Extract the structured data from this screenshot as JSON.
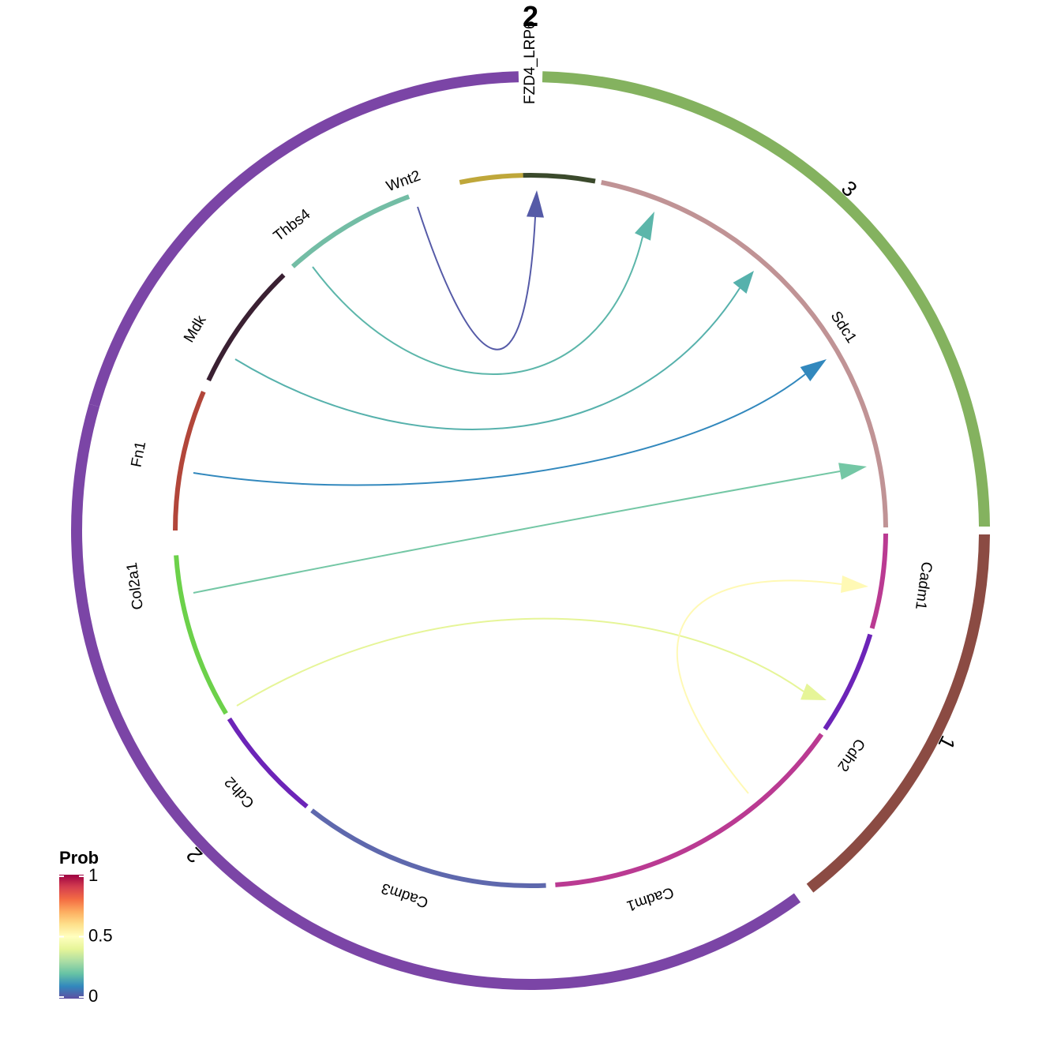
{
  "title": "2",
  "chart_data": {
    "type": "chord",
    "sectors": [
      {
        "label": "2",
        "color": "#7B45A6"
      },
      {
        "label": "3",
        "color": "#84B25F"
      },
      {
        "label": "1",
        "color": "#8B4B43"
      },
      {
        "label": "2",
        "color": "#7B45A6"
      }
    ],
    "genes": [
      {
        "label": "Wnt2",
        "color": "#BFA73A"
      },
      {
        "label": "FZD4_LRP6",
        "color": "#3B4A2C"
      },
      {
        "label": "Sdc1",
        "color": "#C09395"
      },
      {
        "label": "Cadm1",
        "color": "#BA3A92"
      },
      {
        "label": "Cdh2",
        "color": "#6C24B8"
      },
      {
        "label": "Cadm1",
        "color": "#BA3A92"
      },
      {
        "label": "Cadm3",
        "color": "#5E68AD"
      },
      {
        "label": "Cdh2",
        "color": "#6C24B8"
      },
      {
        "label": "Col2a1",
        "color": "#6CD14A"
      },
      {
        "label": "Fn1",
        "color": "#B2463A"
      },
      {
        "label": "Mdk",
        "color": "#3A2032"
      },
      {
        "label": "Thbs4",
        "color": "#73BDA5"
      }
    ],
    "links": [
      {
        "from": "Wnt2",
        "to": "FZD4_LRP6",
        "prob": 0.02
      },
      {
        "from": "Thbs4",
        "to": "Sdc1",
        "prob": 0.18
      },
      {
        "from": "Mdk",
        "to": "Sdc1",
        "prob": 0.17
      },
      {
        "from": "Fn1",
        "to": "Sdc1",
        "prob": 0.1
      },
      {
        "from": "Col2a1",
        "to": "Sdc1",
        "prob": 0.22
      },
      {
        "from": "Cdh2",
        "to": "Cdh2",
        "prob": 0.4
      },
      {
        "from": "Cadm1",
        "to": "Cadm1",
        "prob": 0.52
      }
    ],
    "legend": {
      "title": "Prob",
      "ticks": [
        "1",
        "0.5",
        "0"
      ],
      "range": [
        0,
        1
      ],
      "placement": "bottom-left",
      "colors": [
        "#5E4FA2",
        "#3288BD",
        "#66C2A5",
        "#ABDDA4",
        "#E6F598",
        "#FFFFBF",
        "#FEE08B",
        "#FDAE61",
        "#F46D43",
        "#D53E4F",
        "#9E0142"
      ]
    }
  }
}
